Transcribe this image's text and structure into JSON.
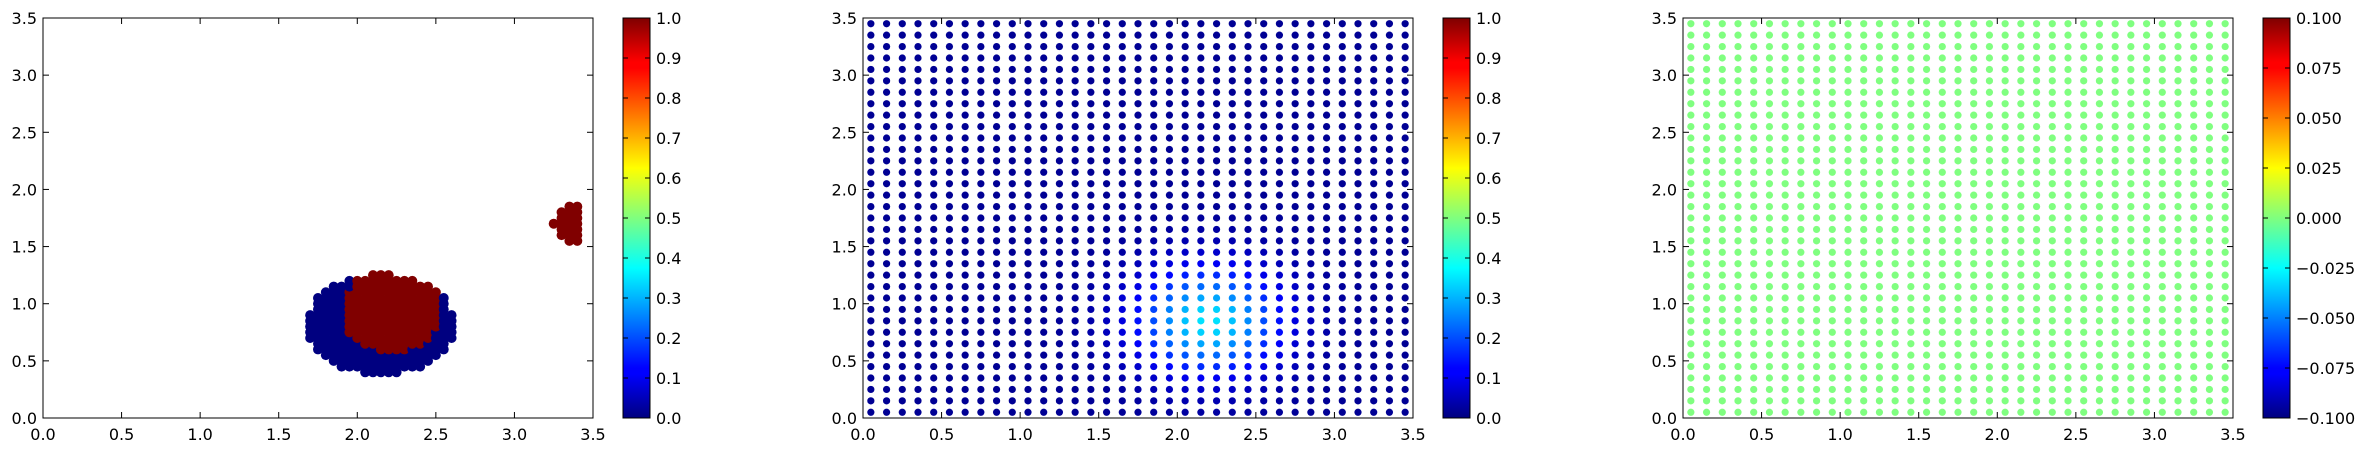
{
  "chart_data": [
    {
      "type": "scatter",
      "title": "",
      "xlabel": "",
      "ylabel": "",
      "xlim": [
        0.0,
        3.5
      ],
      "ylim": [
        0.0,
        3.5
      ],
      "xticks": [
        "0.0",
        "0.5",
        "1.0",
        "1.5",
        "2.0",
        "2.5",
        "3.0",
        "3.5"
      ],
      "yticks": [
        "0.0",
        "0.5",
        "1.0",
        "1.5",
        "2.0",
        "2.5",
        "3.0",
        "3.5"
      ],
      "grid": false,
      "colormap": "jet",
      "clim": [
        0.0,
        1.0
      ],
      "colorbar_ticks": [
        "0.0",
        "0.1",
        "0.2",
        "0.3",
        "0.4",
        "0.5",
        "0.6",
        "0.7",
        "0.8",
        "0.9",
        "1.0"
      ],
      "point_sets": [
        {
          "description": "lower-right blob, low values on the boundary, high values in the core",
          "x_range": [
            1.7,
            2.6
          ],
          "y_range": [
            0.4,
            1.25
          ],
          "center": [
            2.15,
            0.82
          ],
          "core_radius": [
            0.32,
            0.36
          ],
          "outer_radius": [
            0.47,
            0.44
          ],
          "core_value": 1.0,
          "edge_value": 0.0,
          "spacing": 0.05
        },
        {
          "description": "small isolated cluster on the right",
          "x_range": [
            3.25,
            3.42
          ],
          "y_range": [
            1.55,
            1.85
          ],
          "value": 1.0,
          "spacing": 0.05
        }
      ]
    },
    {
      "type": "scatter",
      "title": "",
      "xlabel": "",
      "ylabel": "",
      "xlim": [
        0.0,
        3.5
      ],
      "ylim": [
        0.0,
        3.5
      ],
      "xticks": [
        "0.0",
        "0.5",
        "1.0",
        "1.5",
        "2.0",
        "2.5",
        "3.0",
        "3.5"
      ],
      "yticks": [
        "0.0",
        "0.5",
        "1.0",
        "1.5",
        "2.0",
        "2.5",
        "3.0",
        "3.5"
      ],
      "grid": false,
      "colormap": "jet",
      "clim": [
        0.0,
        1.0
      ],
      "colorbar_ticks": [
        "0.0",
        "0.1",
        "0.2",
        "0.3",
        "0.4",
        "0.5",
        "0.6",
        "0.7",
        "0.8",
        "0.9",
        "1.0"
      ],
      "grid_points": {
        "start": 0.05,
        "end": 3.45,
        "step": 0.1
      },
      "field": {
        "background": 0.02,
        "peak": 0.35,
        "peak_center": [
          2.2,
          0.85
        ],
        "peak_spread": 0.45
      }
    },
    {
      "type": "scatter",
      "title": "",
      "xlabel": "",
      "ylabel": "",
      "xlim": [
        0.0,
        3.5
      ],
      "ylim": [
        0.0,
        3.5
      ],
      "xticks": [
        "0.0",
        "0.5",
        "1.0",
        "1.5",
        "2.0",
        "2.5",
        "3.0",
        "3.5"
      ],
      "yticks": [
        "0.0",
        "0.5",
        "1.0",
        "1.5",
        "2.0",
        "2.5",
        "3.0",
        "3.5"
      ],
      "grid": false,
      "colormap": "jet",
      "clim": [
        -0.1,
        0.1
      ],
      "colorbar_ticks": [
        "−0.100",
        "−0.075",
        "−0.050",
        "−0.025",
        "0.000",
        "0.025",
        "0.050",
        "0.075",
        "0.100"
      ],
      "grid_points": {
        "start": 0.05,
        "end": 3.45,
        "step": 0.1
      },
      "field": {
        "constant": 0.0
      }
    }
  ]
}
